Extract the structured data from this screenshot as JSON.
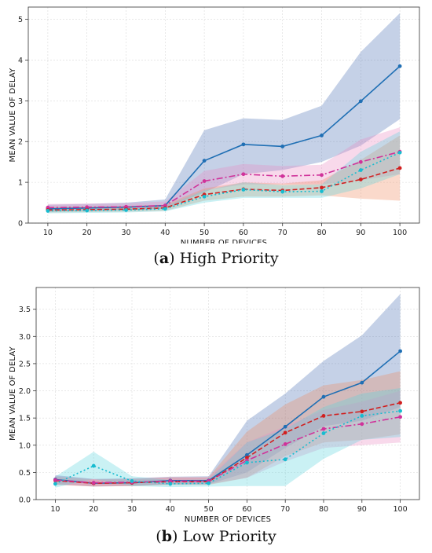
{
  "chart_data": [
    {
      "type": "line",
      "caption_letter": "a",
      "caption_text": "High Priority",
      "xlabel": "NUMBER OF DEVICES",
      "ylabel": "MEAN VALUE OF DELAY",
      "x": [
        10,
        20,
        30,
        40,
        50,
        60,
        70,
        80,
        90,
        100
      ],
      "xlim": [
        5,
        105
      ],
      "ylim": [
        0,
        5.3
      ],
      "yticks": [
        0,
        1,
        2,
        3,
        4,
        5
      ],
      "grid": true,
      "series": [
        {
          "color": "#1f6fb4",
          "dash": "",
          "marker": "circle",
          "values": [
            0.35,
            0.37,
            0.39,
            0.43,
            1.53,
            1.93,
            1.88,
            2.15,
            2.99,
            3.85
          ],
          "lower": [
            0.28,
            0.3,
            0.32,
            0.35,
            0.75,
            1.2,
            1.3,
            1.5,
            1.9,
            2.55
          ],
          "upper": [
            0.45,
            0.47,
            0.5,
            0.58,
            2.28,
            2.57,
            2.53,
            2.88,
            4.2,
            5.15
          ],
          "band": "#4a6fb5"
        },
        {
          "color": "#d0329a",
          "dash": "8,3,2,3",
          "marker": "circle",
          "values": [
            0.38,
            0.39,
            0.4,
            0.43,
            1.03,
            1.2,
            1.15,
            1.18,
            1.5,
            1.75
          ],
          "lower": [
            0.3,
            0.31,
            0.32,
            0.35,
            0.8,
            0.95,
            0.95,
            0.95,
            1.05,
            1.2
          ],
          "upper": [
            0.47,
            0.48,
            0.49,
            0.53,
            1.28,
            1.45,
            1.4,
            1.43,
            2.05,
            2.35
          ],
          "band": "#e88ac0"
        },
        {
          "color": "#d11f1f",
          "dash": "6,3",
          "marker": "circle",
          "values": [
            0.32,
            0.33,
            0.34,
            0.37,
            0.7,
            0.83,
            0.8,
            0.87,
            1.07,
            1.35
          ],
          "lower": [
            0.26,
            0.27,
            0.28,
            0.3,
            0.55,
            0.65,
            0.65,
            0.68,
            0.6,
            0.55
          ],
          "upper": [
            0.4,
            0.41,
            0.42,
            0.45,
            0.85,
            1.0,
            0.97,
            1.05,
            1.55,
            2.15
          ],
          "band": "#f08a5e"
        },
        {
          "color": "#17bcd0",
          "dash": "2,3",
          "marker": "circle",
          "values": [
            0.3,
            0.31,
            0.32,
            0.35,
            0.65,
            0.82,
            0.77,
            0.78,
            1.3,
            1.73
          ],
          "lower": [
            0.24,
            0.25,
            0.26,
            0.29,
            0.5,
            0.62,
            0.62,
            0.62,
            0.85,
            1.2
          ],
          "upper": [
            0.37,
            0.38,
            0.39,
            0.42,
            0.8,
            1.0,
            0.93,
            0.95,
            1.75,
            2.25
          ],
          "band": "#5ad2dc"
        }
      ]
    },
    {
      "type": "line",
      "caption_letter": "b",
      "caption_text": "Low Priority",
      "xlabel": "NUMBER OF DEVICES",
      "ylabel": "MEAN VALUE OF DELAY",
      "x": [
        10,
        20,
        30,
        40,
        50,
        60,
        70,
        80,
        90,
        100
      ],
      "xlim": [
        5,
        105
      ],
      "ylim": [
        0,
        3.9
      ],
      "yticks": [
        0.0,
        0.5,
        1.0,
        1.5,
        2.0,
        2.5,
        3.0,
        3.5
      ],
      "grid": true,
      "series": [
        {
          "color": "#1f6fb4",
          "dash": "",
          "marker": "circle",
          "values": [
            0.37,
            0.3,
            0.31,
            0.35,
            0.35,
            0.82,
            1.34,
            1.89,
            2.15,
            2.73
          ],
          "lower": [
            0.28,
            0.24,
            0.25,
            0.28,
            0.28,
            0.5,
            0.95,
            1.35,
            1.45,
            1.7
          ],
          "upper": [
            0.45,
            0.38,
            0.39,
            0.42,
            0.43,
            1.45,
            1.95,
            2.55,
            3.02,
            3.78
          ],
          "band": "#4a6fb5"
        },
        {
          "color": "#d11f1f",
          "dash": "6,3",
          "marker": "circle",
          "values": [
            0.35,
            0.3,
            0.31,
            0.33,
            0.33,
            0.77,
            1.23,
            1.54,
            1.62,
            1.78
          ],
          "lower": [
            0.27,
            0.24,
            0.25,
            0.27,
            0.27,
            0.4,
            0.8,
            1.05,
            1.1,
            1.2
          ],
          "upper": [
            0.42,
            0.37,
            0.38,
            0.41,
            0.41,
            1.25,
            1.75,
            2.1,
            2.2,
            2.36
          ],
          "band": "#f08a5e"
        },
        {
          "color": "#d0329a",
          "dash": "8,3,2,3",
          "marker": "circle",
          "values": [
            0.36,
            0.31,
            0.32,
            0.34,
            0.34,
            0.72,
            1.02,
            1.3,
            1.39,
            1.52
          ],
          "lower": [
            0.28,
            0.25,
            0.26,
            0.28,
            0.28,
            0.4,
            0.7,
            0.95,
            1.0,
            1.05
          ],
          "upper": [
            0.44,
            0.38,
            0.39,
            0.41,
            0.41,
            1.05,
            1.35,
            1.65,
            1.8,
            2.0
          ],
          "band": "#e88ac0"
        },
        {
          "color": "#17bcd0",
          "dash": "2,3",
          "marker": "circle",
          "values": [
            0.29,
            0.62,
            0.34,
            0.29,
            0.3,
            0.68,
            0.74,
            1.22,
            1.54,
            1.63
          ],
          "lower": [
            0.22,
            0.38,
            0.25,
            0.23,
            0.24,
            0.25,
            0.25,
            0.75,
            1.1,
            1.15
          ],
          "upper": [
            0.42,
            0.88,
            0.43,
            0.36,
            0.37,
            1.05,
            1.3,
            1.7,
            1.95,
            2.05
          ],
          "band": "#5ad2dc"
        }
      ]
    }
  ]
}
